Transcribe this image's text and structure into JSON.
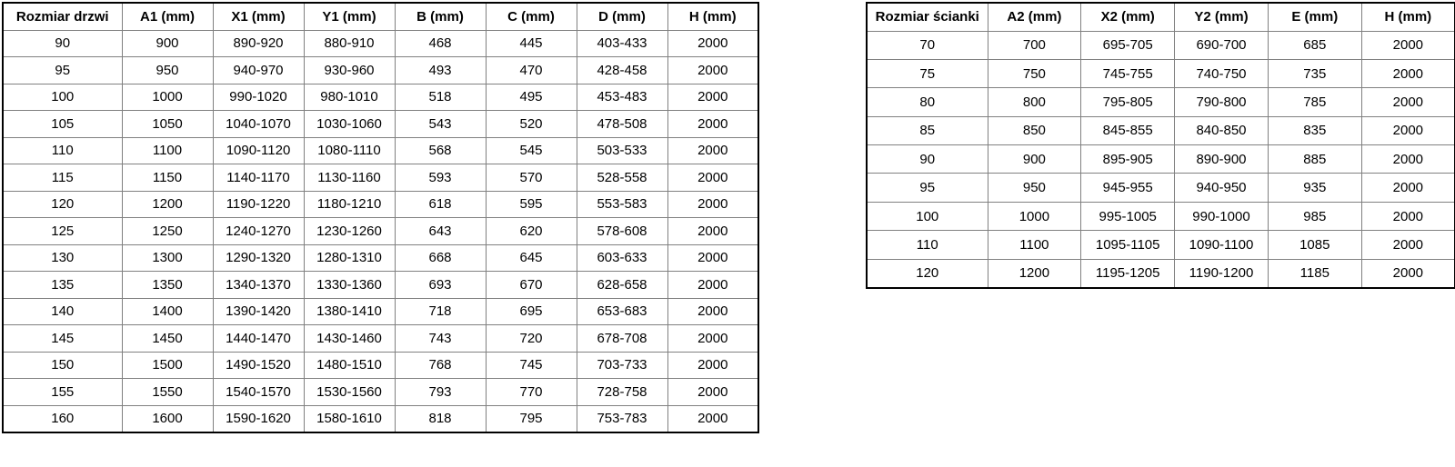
{
  "colors": {
    "background": "#ffffff",
    "border_outer": "#000000",
    "border_inner": "#808080",
    "text": "#000000",
    "cell_background": "#ffffff"
  },
  "tables": [
    {
      "name": "door-dimensions-table",
      "headers": [
        "Rozmiar drzwi",
        "A1 (mm)",
        "X1 (mm)",
        "Y1 (mm)",
        "B (mm)",
        "C (mm)",
        "D (mm)",
        "H (mm)"
      ],
      "rows": [
        [
          "90",
          "900",
          "890-920",
          "880-910",
          "468",
          "445",
          "403-433",
          "2000"
        ],
        [
          "95",
          "950",
          "940-970",
          "930-960",
          "493",
          "470",
          "428-458",
          "2000"
        ],
        [
          "100",
          "1000",
          "990-1020",
          "980-1010",
          "518",
          "495",
          "453-483",
          "2000"
        ],
        [
          "105",
          "1050",
          "1040-1070",
          "1030-1060",
          "543",
          "520",
          "478-508",
          "2000"
        ],
        [
          "110",
          "1100",
          "1090-1120",
          "1080-1110",
          "568",
          "545",
          "503-533",
          "2000"
        ],
        [
          "115",
          "1150",
          "1140-1170",
          "1130-1160",
          "593",
          "570",
          "528-558",
          "2000"
        ],
        [
          "120",
          "1200",
          "1190-1220",
          "1180-1210",
          "618",
          "595",
          "553-583",
          "2000"
        ],
        [
          "125",
          "1250",
          "1240-1270",
          "1230-1260",
          "643",
          "620",
          "578-608",
          "2000"
        ],
        [
          "130",
          "1300",
          "1290-1320",
          "1280-1310",
          "668",
          "645",
          "603-633",
          "2000"
        ],
        [
          "135",
          "1350",
          "1340-1370",
          "1330-1360",
          "693",
          "670",
          "628-658",
          "2000"
        ],
        [
          "140",
          "1400",
          "1390-1420",
          "1380-1410",
          "718",
          "695",
          "653-683",
          "2000"
        ],
        [
          "145",
          "1450",
          "1440-1470",
          "1430-1460",
          "743",
          "720",
          "678-708",
          "2000"
        ],
        [
          "150",
          "1500",
          "1490-1520",
          "1480-1510",
          "768",
          "745",
          "703-733",
          "2000"
        ],
        [
          "155",
          "1550",
          "1540-1570",
          "1530-1560",
          "793",
          "770",
          "728-758",
          "2000"
        ],
        [
          "160",
          "1600",
          "1590-1620",
          "1580-1610",
          "818",
          "795",
          "753-783",
          "2000"
        ]
      ]
    },
    {
      "name": "wall-dimensions-table",
      "headers": [
        "Rozmiar ścianki",
        "A2 (mm)",
        "X2 (mm)",
        "Y2 (mm)",
        "E (mm)",
        "H (mm)"
      ],
      "rows": [
        [
          "70",
          "700",
          "695-705",
          "690-700",
          "685",
          "2000"
        ],
        [
          "75",
          "750",
          "745-755",
          "740-750",
          "735",
          "2000"
        ],
        [
          "80",
          "800",
          "795-805",
          "790-800",
          "785",
          "2000"
        ],
        [
          "85",
          "850",
          "845-855",
          "840-850",
          "835",
          "2000"
        ],
        [
          "90",
          "900",
          "895-905",
          "890-900",
          "885",
          "2000"
        ],
        [
          "95",
          "950",
          "945-955",
          "940-950",
          "935",
          "2000"
        ],
        [
          "100",
          "1000",
          "995-1005",
          "990-1000",
          "985",
          "2000"
        ],
        [
          "110",
          "1100",
          "1095-1105",
          "1090-1100",
          "1085",
          "2000"
        ],
        [
          "120",
          "1200",
          "1195-1205",
          "1190-1200",
          "1185",
          "2000"
        ]
      ]
    }
  ]
}
